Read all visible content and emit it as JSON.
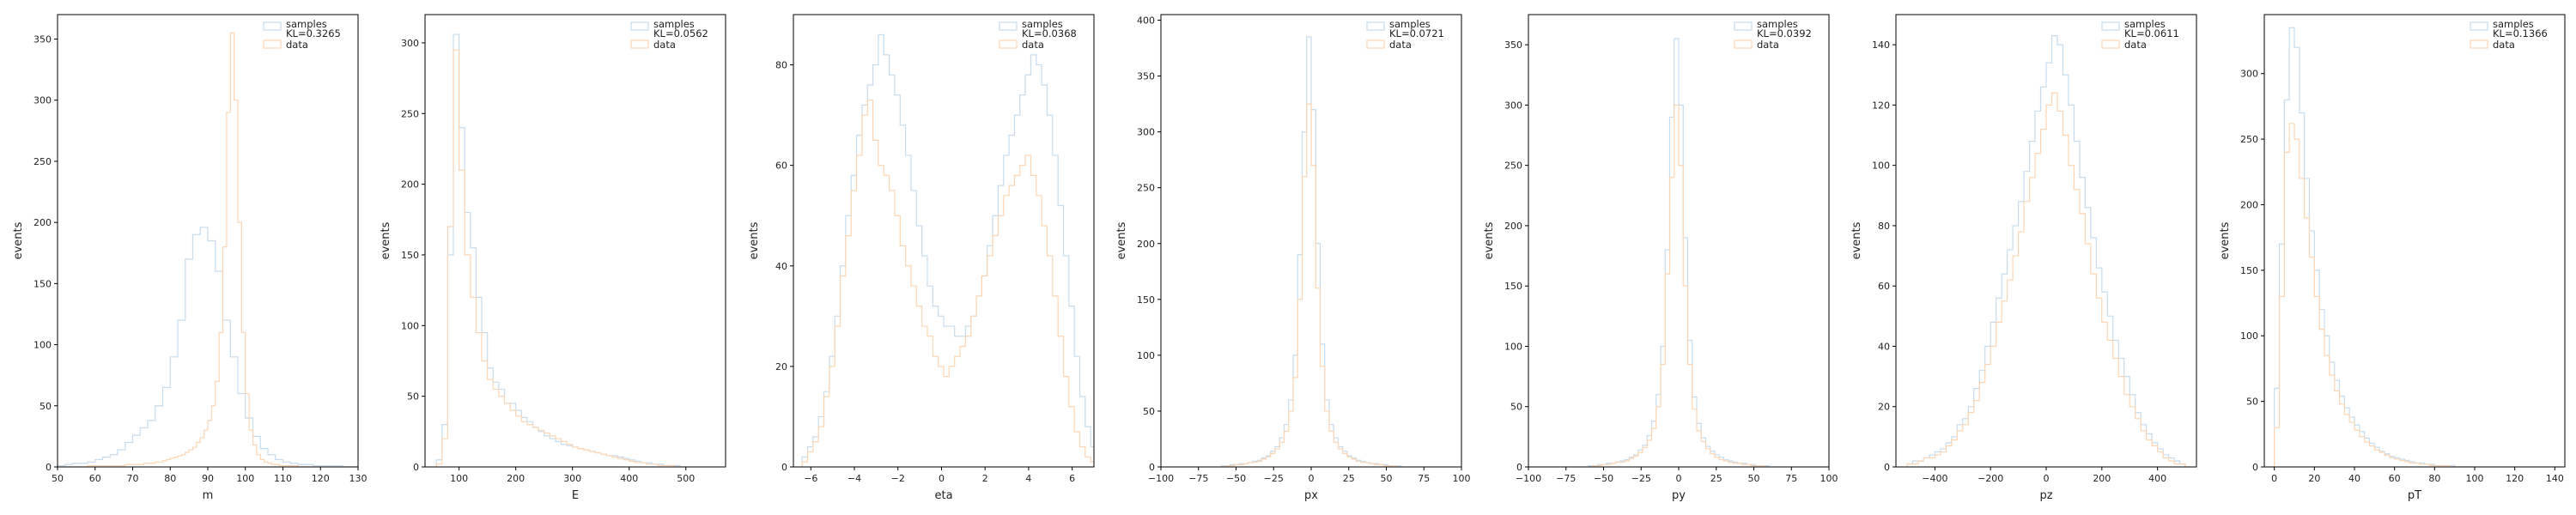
{
  "figure": {
    "colors": {
      "samples": "#c6dcee",
      "data": "#fcd6b4"
    }
  },
  "chart_data": [
    {
      "type": "histogram",
      "xlabel": "m",
      "ylabel": "events",
      "xlim": [
        50,
        130
      ],
      "ylim": [
        0,
        370
      ],
      "xticks": [
        50,
        60,
        70,
        80,
        90,
        100,
        110,
        120,
        130
      ],
      "yticks": [
        0,
        50,
        100,
        150,
        200,
        250,
        300,
        350
      ],
      "xtick_labels": [
        "50",
        "60",
        "70",
        "80",
        "90",
        "100",
        "110",
        "120",
        "130"
      ],
      "ytick_labels": [
        "0",
        "50",
        "100",
        "150",
        "200",
        "250",
        "300",
        "350"
      ],
      "legend": {
        "position": "top-right",
        "entries": [
          "samples",
          "KL=0.3265",
          "data"
        ]
      },
      "series": [
        {
          "name": "samples",
          "x_start": 50,
          "bin_width": 2,
          "values": [
            1,
            2,
            3,
            3,
            4,
            6,
            8,
            10,
            14,
            20,
            26,
            32,
            38,
            50,
            65,
            90,
            120,
            170,
            190,
            196,
            185,
            160,
            120,
            90,
            60,
            40,
            25,
            15,
            10,
            6,
            4,
            3,
            2,
            2,
            1,
            1,
            1,
            1,
            0,
            0
          ]
        },
        {
          "name": "data",
          "x_start": 50,
          "bin_width": 1,
          "values": [
            0,
            0,
            0,
            0,
            0,
            0,
            0,
            0,
            1,
            1,
            1,
            1,
            1,
            1,
            1,
            1,
            1,
            1,
            2,
            2,
            2,
            2,
            2,
            3,
            3,
            3,
            4,
            4,
            5,
            6,
            7,
            8,
            9,
            10,
            12,
            14,
            16,
            20,
            24,
            30,
            38,
            50,
            70,
            110,
            180,
            290,
            355,
            300,
            200,
            110,
            60,
            30,
            18,
            10,
            6,
            4,
            3,
            2,
            2,
            1,
            1,
            1,
            1,
            1,
            0,
            0,
            0,
            0,
            0,
            0,
            0,
            0,
            0,
            0,
            0,
            0,
            0,
            0,
            0,
            0
          ]
        }
      ]
    },
    {
      "type": "histogram",
      "xlabel": "E",
      "ylabel": "events",
      "xlim": [
        40,
        570
      ],
      "ylim": [
        0,
        320
      ],
      "xticks": [
        100,
        200,
        300,
        400,
        500
      ],
      "yticks": [
        0,
        50,
        100,
        150,
        200,
        250,
        300
      ],
      "xtick_labels": [
        "100",
        "200",
        "300",
        "400",
        "500"
      ],
      "ytick_labels": [
        "0",
        "50",
        "100",
        "150",
        "200",
        "250",
        "300"
      ],
      "legend": {
        "position": "top-right",
        "entries": [
          "samples",
          "KL=0.0562",
          "data"
        ]
      },
      "series": [
        {
          "name": "samples",
          "x_start": 60,
          "bin_width": 10,
          "values": [
            5,
            30,
            150,
            306,
            240,
            180,
            155,
            120,
            95,
            70,
            60,
            55,
            45,
            45,
            40,
            35,
            32,
            28,
            25,
            22,
            20,
            18,
            16,
            15,
            14,
            13,
            12,
            11,
            10,
            9,
            8,
            8,
            7,
            6,
            5,
            4,
            3,
            3,
            2,
            2,
            1,
            1,
            1,
            0
          ]
        },
        {
          "name": "data",
          "x_start": 60,
          "bin_width": 10,
          "values": [
            2,
            20,
            170,
            295,
            210,
            150,
            120,
            95,
            75,
            62,
            55,
            50,
            45,
            40,
            36,
            32,
            30,
            28,
            26,
            24,
            22,
            20,
            18,
            16,
            14,
            13,
            12,
            11,
            10,
            9,
            8,
            7,
            6,
            5,
            4,
            3,
            3,
            2,
            2,
            1,
            1,
            1,
            0,
            0
          ]
        }
      ]
    },
    {
      "type": "histogram",
      "xlabel": "eta",
      "ylabel": "events",
      "xlim": [
        -6.8,
        7.0
      ],
      "ylim": [
        0,
        90
      ],
      "xticks": [
        -6,
        -4,
        -2,
        0,
        2,
        4,
        6
      ],
      "yticks": [
        0,
        20,
        40,
        60,
        80
      ],
      "xtick_labels": [
        "−6",
        "−4",
        "−2",
        "0",
        "2",
        "4",
        "6"
      ],
      "ytick_labels": [
        "0",
        "20",
        "40",
        "60",
        "80"
      ],
      "legend": {
        "position": "top-right",
        "entries": [
          "samples",
          "KL=0.0368",
          "data"
        ]
      },
      "series": [
        {
          "name": "samples",
          "x_start": -6.4,
          "bin_width": 0.25,
          "values": [
            2,
            4,
            6,
            10,
            15,
            22,
            30,
            40,
            50,
            58,
            66,
            72,
            76,
            80,
            86,
            82,
            78,
            74,
            68,
            62,
            55,
            48,
            42,
            36,
            32,
            30,
            28,
            28,
            26,
            26,
            28,
            30,
            34,
            38,
            44,
            50,
            56,
            62,
            66,
            70,
            74,
            78,
            82,
            80,
            76,
            70,
            62,
            52,
            42,
            32,
            22,
            14,
            8,
            4
          ]
        },
        {
          "name": "data",
          "x_start": -6.4,
          "bin_width": 0.25,
          "values": [
            1,
            3,
            5,
            8,
            14,
            20,
            28,
            38,
            46,
            55,
            62,
            70,
            73,
            65,
            60,
            58,
            55,
            50,
            44,
            40,
            36,
            32,
            28,
            26,
            22,
            20,
            18,
            20,
            22,
            24,
            26,
            30,
            34,
            38,
            42,
            46,
            50,
            54,
            56,
            58,
            60,
            62,
            58,
            54,
            48,
            42,
            34,
            26,
            18,
            12,
            7,
            4,
            2,
            1
          ]
        }
      ]
    },
    {
      "type": "histogram",
      "xlabel": "px",
      "ylabel": "events",
      "xlim": [
        -100,
        100
      ],
      "ylim": [
        0,
        405
      ],
      "xticks": [
        -100,
        -75,
        -50,
        -25,
        0,
        25,
        50,
        75,
        100
      ],
      "yticks": [
        0,
        50,
        100,
        150,
        200,
        250,
        300,
        350,
        400
      ],
      "xtick_labels": [
        "−100",
        "−75",
        "−50",
        "−25",
        "0",
        "25",
        "50",
        "75",
        "100"
      ],
      "ytick_labels": [
        "0",
        "50",
        "100",
        "150",
        "200",
        "250",
        "300",
        "350",
        "400"
      ],
      "legend": {
        "position": "top-right",
        "entries": [
          "samples",
          "KL=0.0721",
          "data"
        ]
      },
      "series": [
        {
          "name": "samples",
          "x_start": -60,
          "bin_width": 3,
          "values": [
            1,
            1,
            2,
            2,
            3,
            3,
            4,
            5,
            6,
            8,
            10,
            14,
            18,
            26,
            38,
            60,
            100,
            190,
            300,
            385,
            320,
            200,
            110,
            60,
            38,
            26,
            18,
            14,
            10,
            8,
            6,
            5,
            4,
            3,
            3,
            2,
            2,
            1,
            1,
            1
          ]
        },
        {
          "name": "data",
          "x_start": -60,
          "bin_width": 3,
          "values": [
            0,
            1,
            1,
            2,
            2,
            3,
            4,
            4,
            5,
            7,
            9,
            12,
            16,
            22,
            32,
            50,
            80,
            150,
            260,
            325,
            270,
            160,
            90,
            50,
            32,
            22,
            16,
            12,
            9,
            7,
            5,
            4,
            4,
            3,
            2,
            2,
            1,
            1,
            1,
            0
          ]
        }
      ]
    },
    {
      "type": "histogram",
      "xlabel": "py",
      "ylabel": "events",
      "xlim": [
        -100,
        100
      ],
      "ylim": [
        0,
        375
      ],
      "xticks": [
        -100,
        -75,
        -50,
        -25,
        0,
        25,
        50,
        75,
        100
      ],
      "yticks": [
        0,
        50,
        100,
        150,
        200,
        250,
        300,
        350
      ],
      "xtick_labels": [
        "−100",
        "−75",
        "−50",
        "−25",
        "0",
        "25",
        "50",
        "75",
        "100"
      ],
      "ytick_labels": [
        "0",
        "50",
        "100",
        "150",
        "200",
        "250",
        "300",
        "350"
      ],
      "legend": {
        "position": "top-right",
        "entries": [
          "samples",
          "KL=0.0392",
          "data"
        ]
      },
      "series": [
        {
          "name": "samples",
          "x_start": -60,
          "bin_width": 3,
          "values": [
            1,
            1,
            2,
            2,
            3,
            3,
            4,
            5,
            6,
            8,
            10,
            14,
            18,
            26,
            38,
            60,
            100,
            180,
            290,
            355,
            300,
            190,
            105,
            58,
            36,
            24,
            17,
            13,
            10,
            8,
            6,
            5,
            4,
            3,
            3,
            2,
            2,
            1,
            1,
            1
          ]
        },
        {
          "name": "data",
          "x_start": -60,
          "bin_width": 3,
          "values": [
            0,
            1,
            1,
            2,
            2,
            3,
            4,
            4,
            5,
            7,
            9,
            12,
            16,
            22,
            32,
            50,
            85,
            160,
            240,
            300,
            250,
            150,
            85,
            48,
            30,
            21,
            15,
            11,
            8,
            6,
            5,
            4,
            3,
            3,
            2,
            2,
            1,
            1,
            1,
            0
          ]
        }
      ]
    },
    {
      "type": "histogram",
      "xlabel": "pz",
      "ylabel": "events",
      "xlim": [
        -540,
        540
      ],
      "ylim": [
        0,
        150
      ],
      "xticks": [
        -400,
        -200,
        0,
        200,
        400
      ],
      "yticks": [
        0,
        20,
        40,
        60,
        80,
        100,
        120,
        140
      ],
      "xtick_labels": [
        "−400",
        "−200",
        "0",
        "200",
        "400"
      ],
      "ytick_labels": [
        "0",
        "20",
        "40",
        "60",
        "80",
        "100",
        "120",
        "140"
      ],
      "legend": {
        "position": "top-right",
        "entries": [
          "samples",
          "KL=0.0611",
          "data"
        ]
      },
      "series": [
        {
          "name": "samples",
          "x_start": -500,
          "bin_width": 20,
          "values": [
            1,
            2,
            2,
            3,
            4,
            5,
            6,
            8,
            10,
            14,
            16,
            20,
            26,
            32,
            40,
            48,
            56,
            64,
            72,
            80,
            88,
            98,
            108,
            118,
            126,
            134,
            143,
            140,
            130,
            120,
            108,
            96,
            86,
            76,
            66,
            58,
            50,
            42,
            36,
            30,
            24,
            18,
            14,
            11,
            8,
            6,
            4,
            3,
            2,
            1
          ]
        },
        {
          "name": "data",
          "x_start": -500,
          "bin_width": 20,
          "values": [
            1,
            1,
            2,
            3,
            3,
            4,
            5,
            7,
            9,
            12,
            14,
            18,
            22,
            28,
            34,
            40,
            48,
            55,
            62,
            70,
            78,
            88,
            96,
            104,
            112,
            120,
            124,
            118,
            110,
            100,
            92,
            84,
            74,
            64,
            56,
            48,
            42,
            36,
            30,
            24,
            20,
            16,
            12,
            9,
            7,
            5,
            3,
            2,
            1,
            1
          ]
        }
      ]
    },
    {
      "type": "histogram",
      "xlabel": "pT",
      "ylabel": "events",
      "xlim": [
        -5,
        145
      ],
      "ylim": [
        0,
        345
      ],
      "xticks": [
        0,
        20,
        40,
        60,
        80,
        100,
        120,
        140
      ],
      "yticks": [
        0,
        50,
        100,
        150,
        200,
        250,
        300
      ],
      "xtick_labels": [
        "0",
        "20",
        "40",
        "60",
        "80",
        "100",
        "120",
        "140"
      ],
      "ytick_labels": [
        "0",
        "50",
        "100",
        "150",
        "200",
        "250",
        "300"
      ],
      "legend": {
        "position": "top-right",
        "entries": [
          "samples",
          "KL=0.1366",
          "data"
        ]
      },
      "series": [
        {
          "name": "samples",
          "x_start": 0,
          "bin_width": 2.5,
          "values": [
            60,
            170,
            280,
            335,
            320,
            270,
            220,
            180,
            150,
            120,
            100,
            80,
            66,
            54,
            45,
            38,
            32,
            27,
            22,
            18,
            15,
            12,
            10,
            8,
            7,
            6,
            5,
            4,
            3,
            3,
            2,
            2,
            1,
            1,
            1,
            1,
            0,
            0,
            0,
            0
          ]
        },
        {
          "name": "data",
          "x_start": 0,
          "bin_width": 2.5,
          "values": [
            30,
            130,
            240,
            262,
            250,
            220,
            190,
            160,
            130,
            105,
            85,
            70,
            58,
            48,
            40,
            34,
            28,
            23,
            19,
            16,
            13,
            11,
            9,
            7,
            6,
            5,
            4,
            3,
            3,
            2,
            2,
            1,
            1,
            1,
            1,
            0,
            0,
            0,
            0,
            0
          ]
        }
      ]
    }
  ]
}
